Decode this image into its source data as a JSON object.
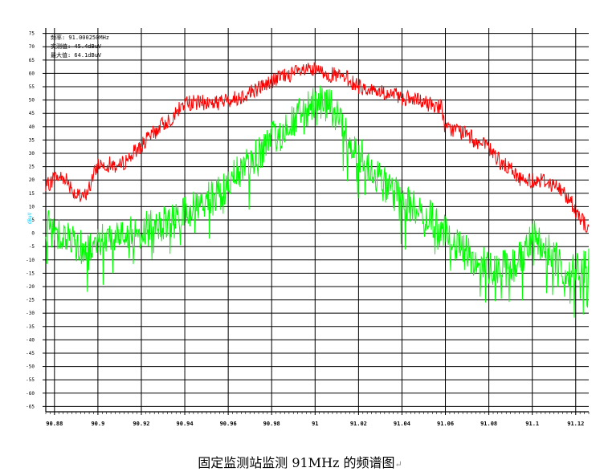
{
  "info": {
    "line1": "频率: 91.000250MHz",
    "line2": "实测值: 45.4dBuV",
    "line3": "最大值: 64.1dBuV"
  },
  "unit_label": "dBuV",
  "caption": "固定监测站监测 91MHz 的频谱图",
  "caption_mark": "↵",
  "chart_data": {
    "type": "line",
    "xlabel": "",
    "ylabel": "dBuV",
    "xlim": [
      90.876,
      91.126
    ],
    "ylim": [
      -67,
      77
    ],
    "x_ticks": [
      "90.88",
      "90.9",
      "90.92",
      "90.94",
      "90.96",
      "90.98",
      "91",
      "91.02",
      "91.04",
      "91.06",
      "91.08",
      "91.1",
      "91.12"
    ],
    "y_ticks": [
      75,
      70,
      65,
      60,
      55,
      50,
      45,
      40,
      35,
      30,
      25,
      20,
      15,
      10,
      5,
      0,
      -5,
      -10,
      -15,
      -20,
      -25,
      -30,
      -35,
      -40,
      -45,
      -50,
      -55,
      -60,
      -65
    ],
    "grid": true,
    "series": [
      {
        "color": "#ff0000",
        "noise": 3,
        "x": [
          90.876,
          90.88,
          90.885,
          90.888,
          90.89,
          90.893,
          90.896,
          90.9,
          90.905,
          90.91,
          90.915,
          90.92,
          90.925,
          90.93,
          90.935,
          90.938,
          90.94,
          90.945,
          90.95,
          90.955,
          90.96,
          90.965,
          90.97,
          90.975,
          90.98,
          90.985,
          90.99,
          90.995,
          91.0,
          91.005,
          91.01,
          91.015,
          91.02,
          91.025,
          91.03,
          91.035,
          91.04,
          91.045,
          91.05,
          91.055,
          91.058,
          91.06,
          91.065,
          91.07,
          91.075,
          91.08,
          91.085,
          91.09,
          91.095,
          91.1,
          91.105,
          91.11,
          91.115,
          91.12,
          91.126
        ],
        "y": [
          17,
          21,
          21,
          17,
          14,
          13,
          17,
          26,
          26,
          25,
          29,
          33,
          37,
          41,
          44,
          47,
          49,
          49,
          49,
          49,
          50,
          51,
          53,
          55,
          57,
          59,
          60,
          61,
          61,
          60,
          59,
          58,
          55,
          54,
          53,
          52,
          51,
          50,
          49,
          48,
          48,
          39,
          39,
          37,
          34,
          32,
          27,
          24,
          20,
          20,
          20,
          18,
          15,
          9,
          1
        ]
      },
      {
        "color": "#00ff00",
        "noise": 7,
        "x": [
          90.876,
          90.88,
          90.885,
          90.89,
          90.895,
          90.9,
          90.905,
          90.91,
          90.915,
          90.92,
          90.925,
          90.93,
          90.935,
          90.94,
          90.945,
          90.95,
          90.955,
          90.96,
          90.965,
          90.97,
          90.975,
          90.98,
          90.985,
          90.99,
          90.995,
          91.0,
          91.005,
          91.01,
          91.015,
          91.02,
          91.025,
          91.03,
          91.035,
          91.04,
          91.045,
          91.05,
          91.055,
          91.06,
          91.065,
          91.07,
          91.075,
          91.08,
          91.085,
          91.09,
          91.095,
          91.1,
          91.105,
          91.11,
          91.115,
          91.12,
          91.126
        ],
        "y": [
          2,
          2,
          -1,
          -4,
          -6,
          -3,
          -1,
          1,
          0,
          1,
          2,
          3,
          4,
          8,
          10,
          12,
          14,
          18,
          23,
          27,
          31,
          35,
          38,
          42,
          46,
          48,
          49,
          45,
          36,
          30,
          26,
          20,
          16,
          13,
          10,
          8,
          4,
          0,
          -4,
          -8,
          -11,
          -12,
          -13,
          -13,
          -9,
          0,
          -4,
          -10,
          -13,
          -14,
          -12
        ]
      }
    ]
  }
}
